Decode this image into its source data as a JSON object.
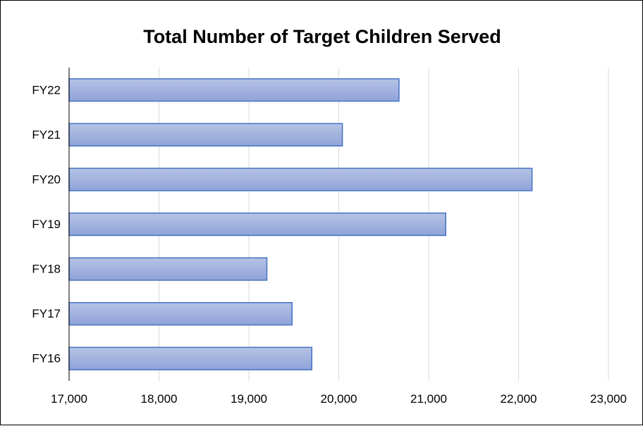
{
  "chart_data": {
    "type": "bar",
    "orientation": "horizontal",
    "title": "Total Number of Target Children Served",
    "xlabel": "",
    "ylabel": "",
    "categories": [
      "FY16",
      "FY17",
      "FY18",
      "FY19",
      "FY20",
      "FY21",
      "FY22"
    ],
    "values": [
      19700,
      19480,
      19200,
      21190,
      22150,
      20040,
      20670
    ],
    "xlim": [
      17000,
      23000
    ],
    "x_ticks": [
      17000,
      18000,
      19000,
      20000,
      21000,
      22000,
      23000
    ],
    "x_tick_labels": [
      "17,000",
      "18,000",
      "19,000",
      "20,000",
      "21,000",
      "22,000",
      "23,000"
    ],
    "grid": "vertical",
    "legend": "none",
    "colors": {
      "bar_fill_top": "#b6c3e5",
      "bar_fill_bottom": "#8fa3d8",
      "bar_stroke": "#4472c4",
      "gridline": "#d9d9d9",
      "axis": "#000000"
    }
  }
}
